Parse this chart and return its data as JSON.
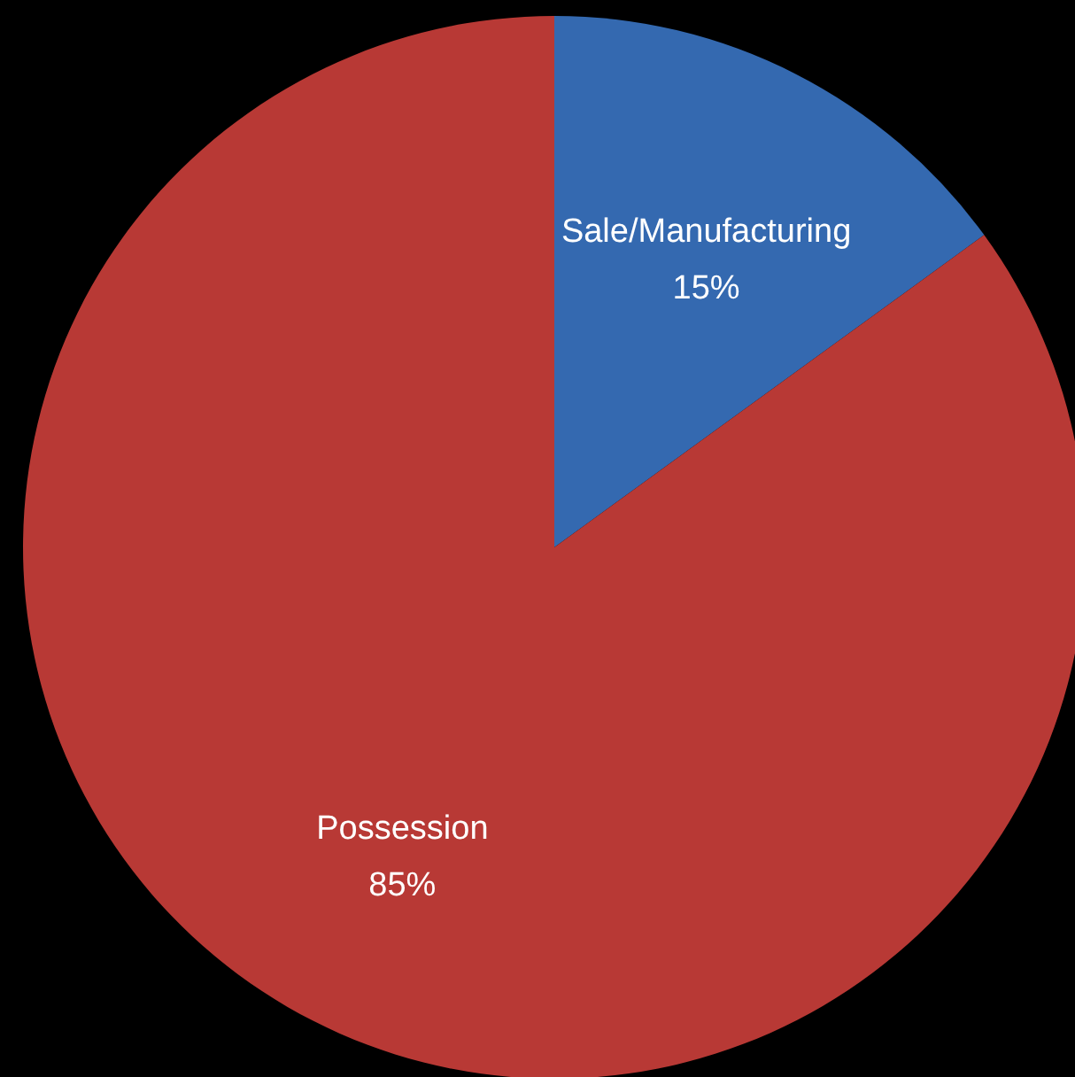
{
  "chart_data": {
    "type": "pie",
    "categories": [
      "Sale/Manufacturing",
      "Possession"
    ],
    "values": [
      15,
      85
    ],
    "colors": [
      "#3469b0",
      "#b83935"
    ],
    "value_labels": [
      "15%",
      "85%"
    ]
  }
}
